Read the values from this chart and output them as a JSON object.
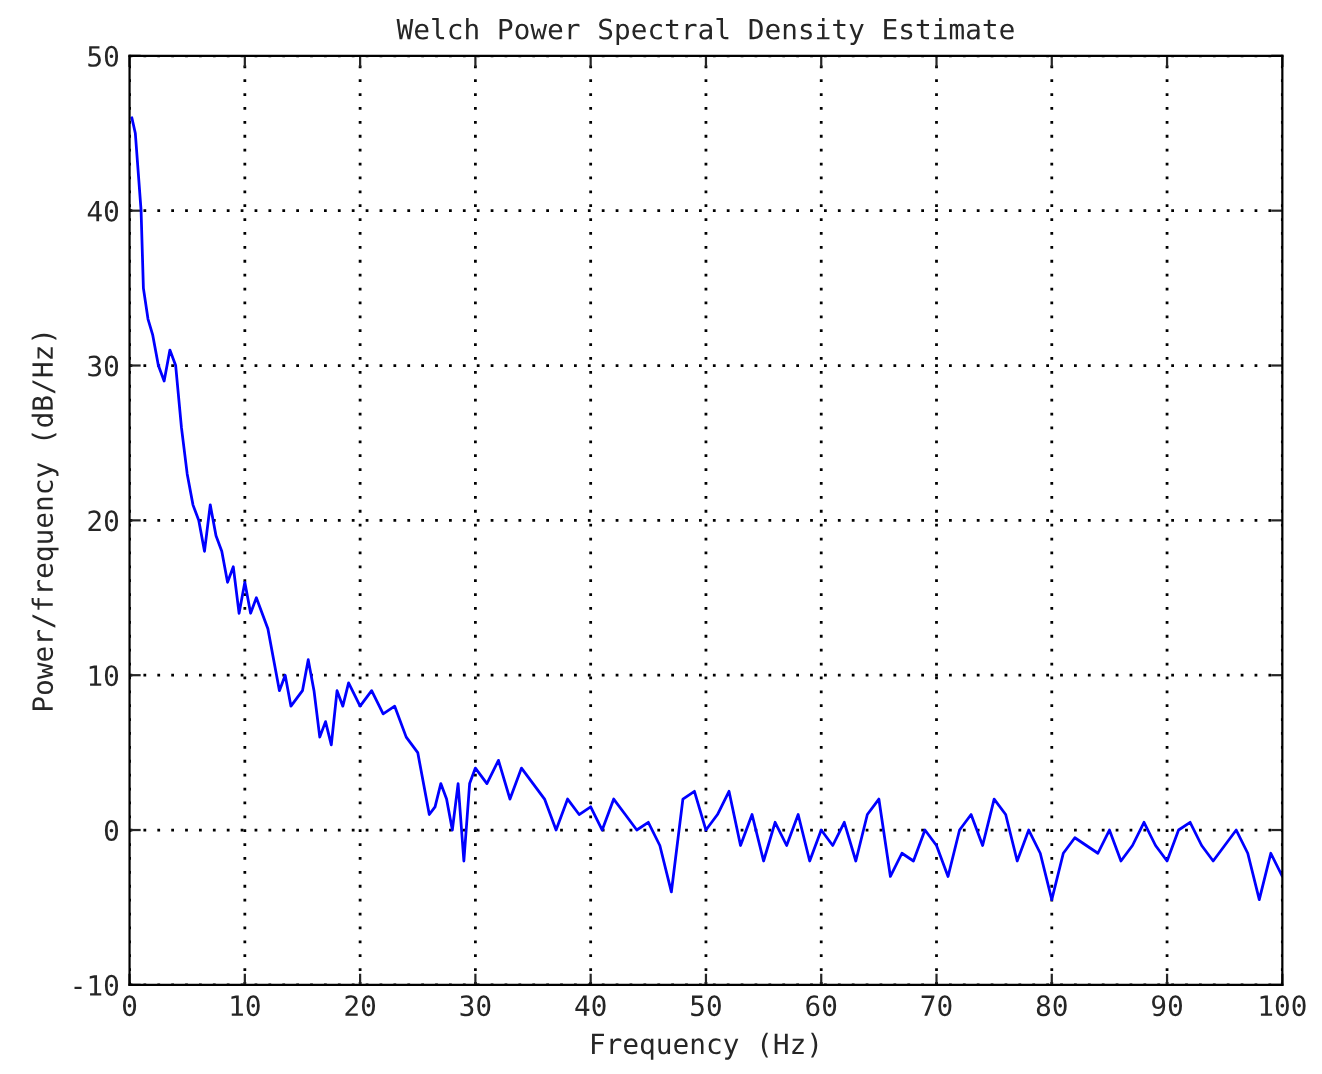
{
  "chart_data": {
    "type": "line",
    "title": "Welch Power Spectral Density Estimate",
    "xlabel": "Frequency (Hz)",
    "ylabel": "Power/frequency (dB/Hz)",
    "xlim": [
      0,
      100
    ],
    "ylim": [
      -10,
      50
    ],
    "xticks": [
      0,
      10,
      20,
      30,
      40,
      50,
      60,
      70,
      80,
      90,
      100
    ],
    "yticks": [
      -10,
      0,
      10,
      20,
      30,
      40,
      50
    ],
    "grid": true,
    "line_style": "solid",
    "series": [
      {
        "color": "#0000ff",
        "x": [
          0.2,
          0.5,
          1,
          1.2,
          1.6,
          2,
          2.5,
          3,
          3.5,
          4,
          4.5,
          5,
          5.5,
          6,
          6.5,
          7,
          7.5,
          8,
          8.5,
          9,
          9.5,
          10,
          10.5,
          11,
          12,
          12.5,
          13,
          13.5,
          14,
          15,
          15.5,
          16,
          16.5,
          17,
          17.5,
          18,
          18.5,
          19,
          20,
          21,
          22,
          23,
          24,
          25,
          25.5,
          26,
          26.5,
          27,
          27.5,
          28,
          28.5,
          29,
          29.5,
          30,
          31,
          32,
          33,
          34,
          35,
          36,
          37,
          38,
          39,
          40,
          41,
          42,
          43,
          44,
          45,
          46,
          47,
          48,
          49,
          50,
          51,
          52,
          53,
          54,
          55,
          56,
          57,
          58,
          59,
          60,
          61,
          62,
          63,
          64,
          65,
          66,
          67,
          68,
          69,
          70,
          71,
          72,
          73,
          74,
          75,
          76,
          77,
          78,
          79,
          80,
          81,
          82,
          83,
          84,
          85,
          86,
          87,
          88,
          89,
          90,
          91,
          92,
          93,
          94,
          95,
          96,
          97,
          98,
          99,
          100
        ],
        "values": [
          46,
          45,
          40,
          35,
          33,
          32,
          30,
          29,
          31,
          30,
          26,
          23,
          21,
          20,
          18,
          21,
          19,
          18,
          16,
          17,
          14,
          16,
          14,
          15,
          13,
          11,
          9,
          10,
          8,
          9,
          11,
          9,
          6,
          7,
          5.5,
          9,
          8,
          9.5,
          8,
          9,
          7.5,
          8,
          6,
          5,
          3,
          1,
          1.5,
          3,
          2,
          0,
          3,
          -2,
          3,
          4,
          3,
          4.5,
          2,
          4,
          3,
          2,
          0,
          2,
          1,
          1.5,
          0,
          2,
          1,
          0,
          0.5,
          -1,
          -4,
          2,
          2.5,
          0,
          1,
          2.5,
          -1,
          1,
          -2,
          0.5,
          -1,
          1,
          -2,
          0,
          -1,
          0.5,
          -2,
          1,
          2,
          -3,
          -1.5,
          -2,
          0,
          -1,
          -3,
          0,
          1,
          -1,
          2,
          1,
          -2,
          0,
          -1.5,
          -4.5,
          -1.5,
          -0.5,
          -1,
          -1.5,
          0,
          -2,
          -1,
          0.5,
          -1,
          -2,
          0,
          0.5,
          -1,
          -2,
          -1,
          0,
          -1.5,
          -4.5,
          -1.5,
          -3
        ]
      }
    ]
  }
}
